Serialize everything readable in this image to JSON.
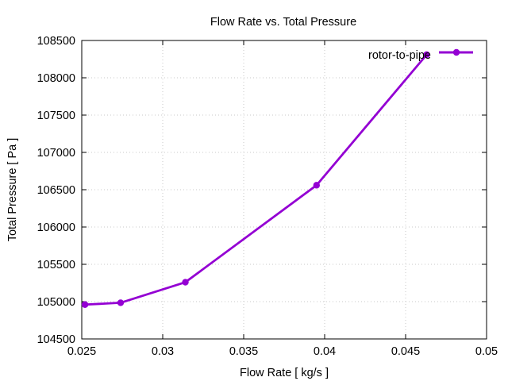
{
  "chart_data": {
    "type": "line",
    "title": "Flow Rate vs. Total Pressure",
    "xlabel": "Flow Rate [ kg/s ]",
    "ylabel": "Total Pressure [ Pa ]",
    "xlim": [
      0.025,
      0.05
    ],
    "ylim": [
      104500,
      108500
    ],
    "xticks": [
      0.025,
      0.03,
      0.035,
      0.04,
      0.045,
      0.05
    ],
    "xtick_labels": [
      "0.025",
      "0.03",
      "0.035",
      "0.04",
      "0.045",
      "0.05"
    ],
    "yticks": [
      104500,
      105000,
      105500,
      106000,
      106500,
      107000,
      107500,
      108000,
      108500
    ],
    "ytick_labels": [
      "104500",
      "105000",
      "105500",
      "106000",
      "106500",
      "107000",
      "107500",
      "108000",
      "108500"
    ],
    "grid": true,
    "legend_position": "top-right",
    "series": [
      {
        "name": "rotor-to-pipe",
        "color": "#9400d3",
        "x": [
          0.0252,
          0.0274,
          0.0314,
          0.0395,
          0.0463
        ],
        "y": [
          104960,
          104985,
          105260,
          106560,
          108310
        ]
      }
    ]
  }
}
